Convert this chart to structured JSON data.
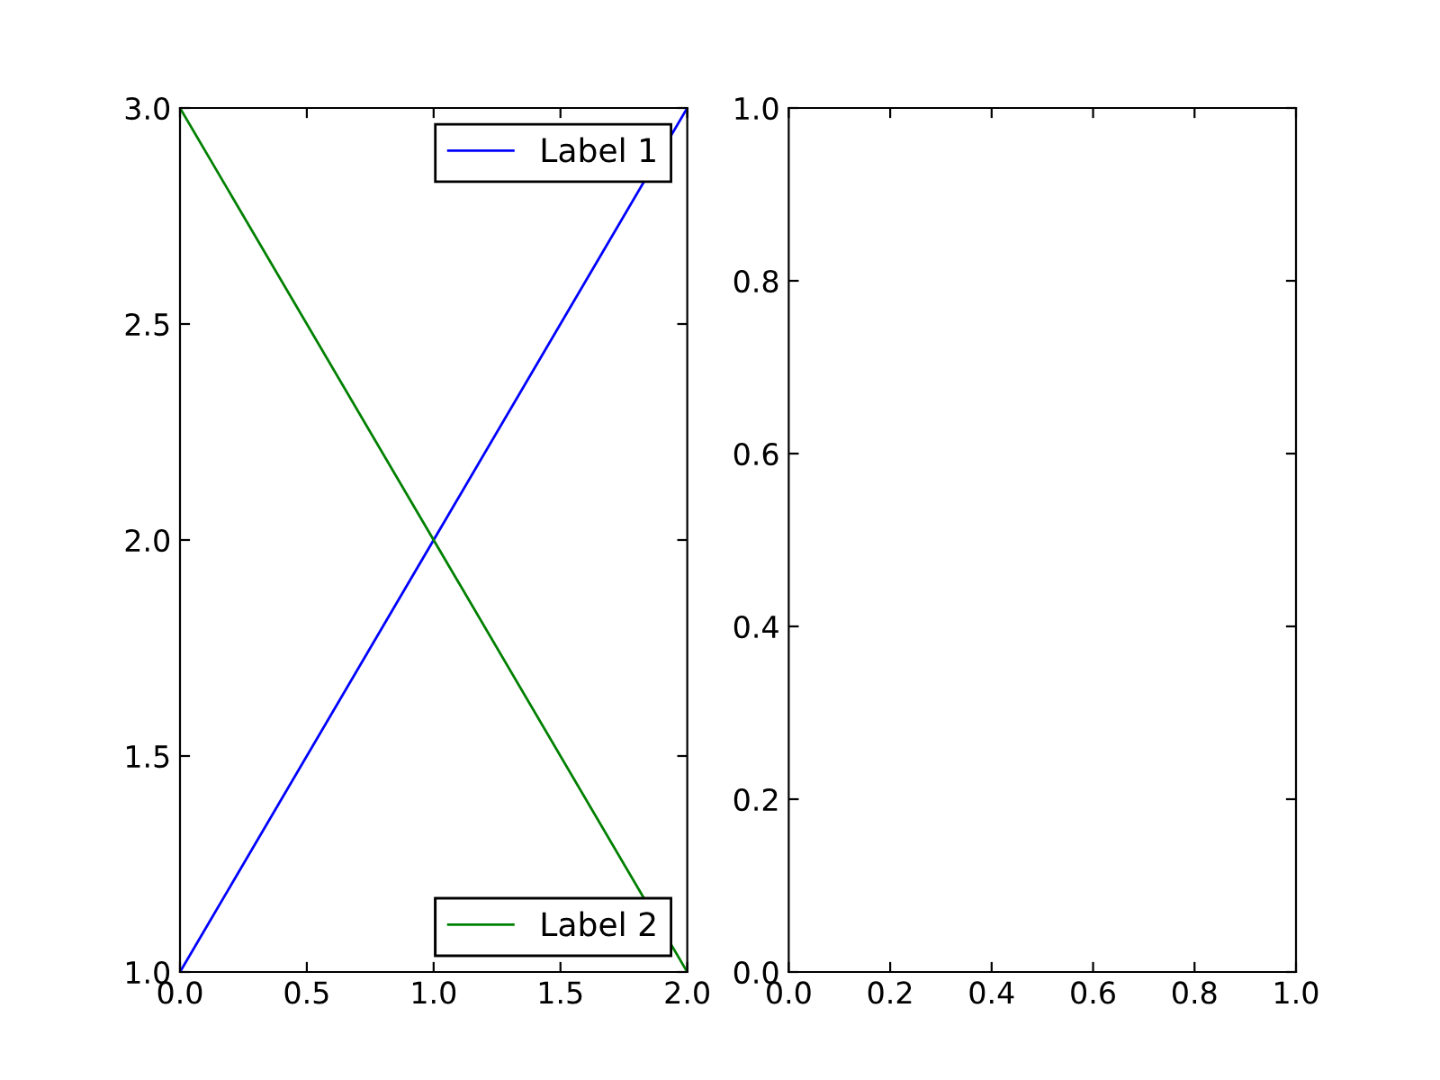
{
  "chart_data": [
    {
      "type": "line",
      "x": [
        0,
        1,
        2
      ],
      "series": [
        {
          "name": "Label 1",
          "color": "#0000ff",
          "values": [
            1,
            2,
            3
          ]
        },
        {
          "name": "Label 2",
          "color": "#008000",
          "values": [
            3,
            2,
            1
          ]
        }
      ],
      "legend": "right",
      "xlim": [
        0,
        2
      ],
      "ylim": [
        1,
        3
      ],
      "xticks": [
        {
          "value": 0,
          "label": "0.0"
        },
        0.5,
        {
          "value": 1,
          "label": "1.0"
        },
        1.5,
        {
          "value": 2,
          "label": "2.0"
        }
      ],
      "yticks": [
        {
          "value": 1,
          "label": "1.0"
        },
        1.5,
        {
          "value": 2,
          "label": "2.0"
        },
        2.5,
        {
          "value": 3,
          "label": "3.0"
        }
      ],
      "line_style": "solid",
      "grid": false
    },
    {
      "type": "line",
      "xlim": [
        0,
        1
      ],
      "ylim": [
        0,
        1
      ],
      "xticks": [
        {
          "value": 0,
          "label": "0.0"
        },
        0.2,
        0.4,
        0.6,
        0.8,
        {
          "value": 1,
          "label": "1.0"
        }
      ],
      "yticks": [
        {
          "value": 0,
          "label": "0.0"
        },
        0.2,
        0.4,
        0.6,
        0.8,
        {
          "value": 1,
          "label": "1.0"
        }
      ],
      "grid": false
    }
  ]
}
